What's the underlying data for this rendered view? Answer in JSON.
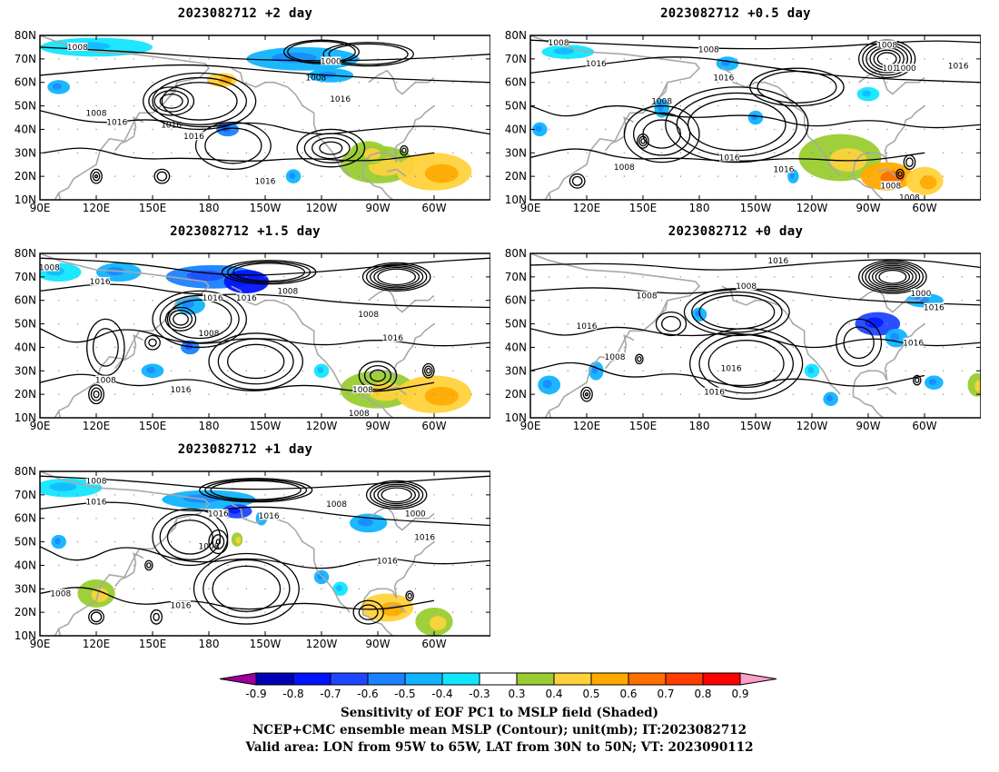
{
  "panels": [
    {
      "title": "2023082712 +2 day",
      "id": "p2"
    },
    {
      "title": "2023082712 +0.5 day",
      "id": "p05"
    },
    {
      "title": "2023082712 +1.5 day",
      "id": "p15"
    },
    {
      "title": "2023082712 +0 day",
      "id": "p0"
    },
    {
      "title": "2023082712 +1 day",
      "id": "p1"
    }
  ],
  "axes": {
    "lat_labels": [
      "80N",
      "70N",
      "60N",
      "50N",
      "40N",
      "30N",
      "20N",
      "10N"
    ],
    "lon_labels": [
      "90E",
      "120E",
      "150E",
      "180",
      "150W",
      "120W",
      "90W",
      "60W"
    ]
  },
  "contour_labels": [
    "1008",
    "1016",
    "1000"
  ],
  "colorbar": {
    "tick_labels": [
      "-0.9",
      "-0.8",
      "-0.7",
      "-0.6",
      "-0.5",
      "-0.4",
      "-0.3",
      "0.3",
      "0.4",
      "0.5",
      "0.6",
      "0.7",
      "0.8",
      "0.9"
    ],
    "colors": [
      "#9b009b",
      "#0000b4",
      "#0014ff",
      "#1e46ff",
      "#1a82ff",
      "#10b4ff",
      "#12e6ff",
      "#ffffff",
      "#9acd32",
      "#ffd23c",
      "#ffaa00",
      "#ff6e00",
      "#ff3c00",
      "#ff0000",
      "#ff9ec8"
    ]
  },
  "caption": {
    "line1": "Sensitivity of EOF PC1 to MSLP field (Shaded)",
    "line2": "NCEP+CMC ensemble mean MSLP (Contour); unit(mb); IT:2023082712",
    "line3": "Valid area: LON from 95W to 65W, LAT from 30N to 50N; VT: 2023090112"
  }
}
